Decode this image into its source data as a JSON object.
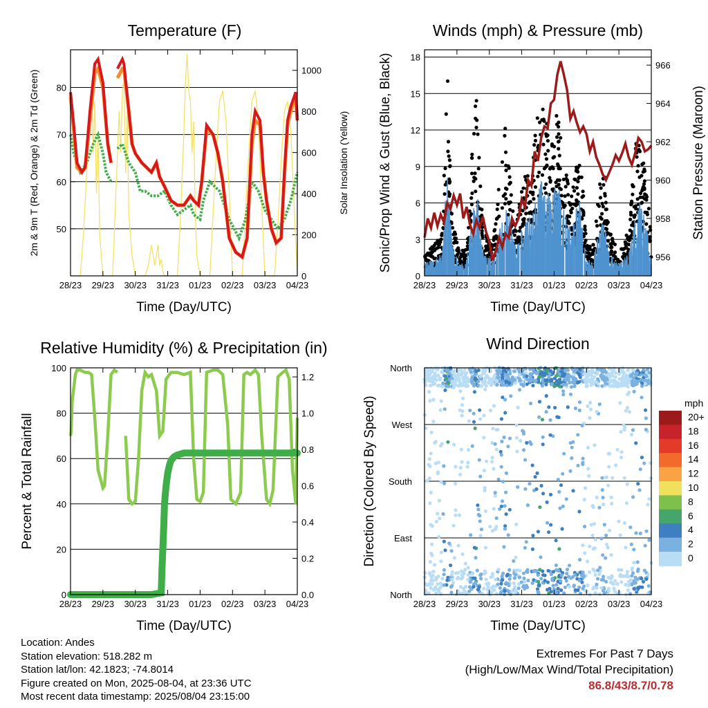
{
  "colors": {
    "temp2m": "#d7191c",
    "temp9m": "#f58b2e",
    "dewpoint": "#3fae49",
    "solar": "#f5e064",
    "gust": "#000000",
    "wind": "#4f93cf",
    "pressure": "#9b1b1b",
    "rh": "#8ccb4f",
    "precip": "#3fae49",
    "extremes": "#c0282d"
  },
  "time_ticks": [
    "28/23",
    "29/23",
    "30/23",
    "31/23",
    "01/23",
    "02/23",
    "03/23",
    "04/23"
  ],
  "chart_data": [
    {
      "id": "temperature",
      "type": "line",
      "title": "Temperature (F)",
      "xlabel": "Time (Day/UTC)",
      "ylabel": "2m & 9m T (Red, Orange) & 2m Td (Green)",
      "y2label": "Solar Insolation (Yellow)",
      "ylim": [
        40,
        88
      ],
      "y2lim": [
        0,
        1100
      ],
      "yticks": [
        50,
        60,
        70,
        80
      ],
      "y2ticks": [
        0,
        200,
        400,
        600,
        800,
        1000
      ],
      "x_days": [
        0,
        1,
        2,
        3,
        4,
        5,
        6,
        7
      ],
      "series": [
        {
          "key": "t2m",
          "x": [
            0,
            0.1,
            0.2,
            0.35,
            0.45,
            0.6,
            0.75,
            0.85,
            1.0,
            1.15,
            1.25,
            1.3,
            1.45,
            1.6,
            1.65,
            1.8,
            1.9,
            2.0,
            2.1,
            2.2,
            2.35,
            2.5,
            2.65,
            2.75,
            2.9,
            3.1,
            3.3,
            3.5,
            3.7,
            3.8,
            3.95,
            4.05,
            4.2,
            4.4,
            4.55,
            4.7,
            4.9,
            5.1,
            5.3,
            5.45,
            5.6,
            5.7,
            5.85,
            5.95,
            6.05,
            6.2,
            6.35,
            6.5,
            6.6,
            6.7,
            6.8,
            6.95,
            7.0
          ],
          "y": [
            79,
            72,
            64,
            62,
            63,
            75,
            85,
            86,
            81,
            68,
            64,
            null,
            84,
            86,
            85,
            75,
            68,
            66,
            65,
            64,
            63,
            62,
            64,
            61,
            59,
            56,
            55,
            55,
            57,
            56,
            55,
            60,
            72,
            70,
            66,
            60,
            48,
            45,
            44,
            48,
            70,
            75,
            73,
            62,
            56,
            50,
            47,
            48,
            62,
            73,
            76,
            79,
            73
          ]
        },
        {
          "key": "t9m",
          "x": [
            0,
            0.1,
            0.2,
            0.35,
            0.45,
            0.6,
            0.75,
            0.85,
            1.0,
            1.15,
            1.25,
            1.3,
            1.45,
            1.6,
            1.65,
            1.8,
            1.9,
            2.0,
            2.1,
            2.2,
            2.35,
            2.5,
            2.65,
            2.75,
            2.9,
            3.1,
            3.3,
            3.5,
            3.7,
            3.8,
            3.95,
            4.05,
            4.2,
            4.4,
            4.55,
            4.7,
            4.9,
            5.1,
            5.3,
            5.45,
            5.6,
            5.7,
            5.85,
            5.95,
            6.05,
            6.2,
            6.35,
            6.5,
            6.6,
            6.7,
            6.8,
            6.95,
            7.0
          ],
          "y": [
            78,
            71,
            63,
            62,
            63,
            73,
            83,
            84,
            80,
            68,
            64,
            null,
            82,
            84,
            84,
            75,
            68,
            66,
            65,
            64,
            63,
            62,
            64,
            61,
            59,
            56,
            55,
            55,
            57,
            56,
            55,
            60,
            71,
            70,
            66,
            60,
            48,
            45,
            44,
            48,
            68,
            73,
            72,
            62,
            56,
            50,
            47,
            48,
            61,
            72,
            75,
            78,
            73
          ]
        },
        {
          "key": "td2m",
          "x": [
            0,
            0.1,
            0.3,
            0.5,
            0.7,
            0.85,
            1.0,
            1.1,
            1.25,
            1.3,
            1.45,
            1.6,
            1.8,
            2.0,
            2.15,
            2.3,
            2.5,
            2.7,
            2.9,
            3.1,
            3.3,
            3.5,
            3.7,
            3.8,
            4.0,
            4.1,
            4.3,
            4.6,
            4.9,
            5.2,
            5.4,
            5.6,
            5.8,
            6.0,
            6.2,
            6.4,
            6.6,
            6.8,
            7.0
          ],
          "y": [
            70,
            66,
            62,
            64,
            68,
            70,
            66,
            62,
            60,
            null,
            67,
            68,
            64,
            62,
            58,
            58,
            57,
            57,
            58,
            55,
            53,
            54,
            55,
            53,
            52,
            56,
            60,
            58,
            52,
            48,
            52,
            60,
            58,
            54,
            52,
            50,
            52,
            56,
            62
          ]
        },
        {
          "key": "solar",
          "x": [
            0,
            0.3,
            0.4,
            0.5,
            0.6,
            0.65,
            0.7,
            0.75,
            0.8,
            0.85,
            0.9,
            1.0,
            1.1,
            1.3,
            1.4,
            1.5,
            1.55,
            1.6,
            1.65,
            1.7,
            1.75,
            1.8,
            1.9,
            2.0,
            2.3,
            2.4,
            2.5,
            2.6,
            2.65,
            2.7,
            2.75,
            2.8,
            2.85,
            2.9,
            3.0,
            3.3,
            3.4,
            3.5,
            3.55,
            3.6,
            3.65,
            3.7,
            3.75,
            3.8,
            3.85,
            3.9,
            4.0,
            4.3,
            4.4,
            4.5,
            4.6,
            4.7,
            4.8,
            4.9,
            5.0,
            5.3,
            5.4,
            5.5,
            5.6,
            5.7,
            5.8,
            5.9,
            6.0,
            6.3,
            6.4,
            6.5,
            6.6,
            6.7,
            6.8,
            6.9,
            7.0
          ],
          "y": [
            0,
            0,
            200,
            500,
            750,
            900,
            600,
            850,
            400,
            700,
            200,
            0,
            0,
            0,
            400,
            800,
            600,
            900,
            950,
            500,
            800,
            300,
            100,
            0,
            0,
            50,
            150,
            50,
            100,
            150,
            50,
            80,
            20,
            0,
            0,
            0,
            300,
            700,
            950,
            1080,
            900,
            850,
            600,
            750,
            300,
            100,
            0,
            0,
            300,
            600,
            850,
            900,
            750,
            400,
            0,
            0,
            300,
            600,
            850,
            900,
            750,
            350,
            0,
            0,
            250,
            550,
            800,
            850,
            700,
            350,
            0
          ]
        }
      ]
    },
    {
      "id": "winds",
      "type": "scatter",
      "title": "Winds (mph) & Pressure (mb)",
      "xlabel": "Time (Day/UTC)",
      "ylabel": "Sonic/Prop Wind & Gust (Blue, Black)",
      "y2label": "Station Pressure (Maroon)",
      "ylim": [
        0,
        18.6
      ],
      "y2lim": [
        955,
        966.8
      ],
      "yticks": [
        0,
        3,
        6,
        9,
        12,
        15,
        18
      ],
      "y2ticks": [
        956,
        958,
        960,
        962,
        964,
        966
      ],
      "gust_profile": {
        "x": [
          0,
          0.3,
          0.55,
          0.7,
          0.85,
          1.1,
          1.3,
          1.6,
          1.8,
          2.1,
          2.5,
          2.8,
          3.0,
          3.3,
          3.6,
          3.9,
          4.1,
          4.5,
          4.8,
          5.0,
          5.2,
          5.5,
          5.7,
          6.0,
          6.3,
          6.6,
          6.9,
          7.0
        ],
        "y": [
          2,
          2,
          3,
          14,
          4,
          1.5,
          2,
          13,
          3,
          2,
          10,
          3,
          6,
          8,
          12,
          9,
          11,
          5,
          9,
          2,
          2,
          8,
          3,
          1.5,
          3,
          11,
          5,
          3
        ]
      },
      "wind_profile": {
        "x": [
          0,
          0.3,
          0.55,
          0.7,
          0.85,
          1.1,
          1.3,
          1.6,
          1.8,
          2.1,
          2.5,
          2.8,
          3.0,
          3.3,
          3.6,
          3.9,
          4.1,
          4.5,
          4.8,
          5.0,
          5.2,
          5.5,
          5.7,
          6.0,
          6.3,
          6.6,
          6.9,
          7.0
        ],
        "y": [
          1,
          1,
          1.5,
          7,
          2,
          0.7,
          1,
          6,
          1.5,
          1,
          5,
          2,
          3,
          4,
          6,
          5,
          6,
          3,
          5,
          1,
          1,
          4,
          1.5,
          0.7,
          1.5,
          5,
          3,
          1.5
        ]
      },
      "series": [
        {
          "key": "pressure",
          "x": [
            0,
            0.1,
            0.2,
            0.3,
            0.4,
            0.5,
            0.6,
            0.7,
            0.8,
            0.9,
            1.0,
            1.1,
            1.2,
            1.3,
            1.4,
            1.5,
            1.6,
            1.7,
            1.8,
            1.9,
            2.0,
            2.1,
            2.2,
            2.3,
            2.4,
            2.5,
            2.6,
            2.7,
            2.8,
            2.9,
            3.0,
            3.1,
            3.2,
            3.3,
            3.4,
            3.5,
            3.6,
            3.7,
            3.8,
            3.9,
            4.0,
            4.1,
            4.2,
            4.3,
            4.4,
            4.5,
            4.6,
            4.7,
            4.8,
            4.9,
            5.0,
            5.1,
            5.2,
            5.3,
            5.4,
            5.5,
            5.6,
            5.7,
            5.8,
            5.9,
            6.0,
            6.1,
            6.2,
            6.3,
            6.4,
            6.5,
            6.6,
            6.7,
            6.8,
            6.9,
            7.0
          ],
          "y": [
            957,
            958,
            957.5,
            958.3,
            957.6,
            958.2,
            957.8,
            958.8,
            958.5,
            959.2,
            958.7,
            959.3,
            958.0,
            958.6,
            957.7,
            957.2,
            957.9,
            957.5,
            958.1,
            957.3,
            956.8,
            955.8,
            956.3,
            957.0,
            956.5,
            957.2,
            957.0,
            958.0,
            957.6,
            958.0,
            959.0,
            958.6,
            960.0,
            959.7,
            961.5,
            961.0,
            962.2,
            962.8,
            962.7,
            964.0,
            964.2,
            965.5,
            966.2,
            965.5,
            964.7,
            963.2,
            963.6,
            963.0,
            962.5,
            962.8,
            962.4,
            961.5,
            962.0,
            961.2,
            960.8,
            960.3,
            960.0,
            960.4,
            960.8,
            961.3,
            961.0,
            961.4,
            961.9,
            961.2,
            960.8,
            961.4,
            962.2,
            962.0,
            961.5,
            961.6,
            961.8
          ]
        }
      ]
    },
    {
      "id": "humidity",
      "type": "line",
      "title": "Relative Humidity (%) & Precipitation (in)",
      "xlabel": "Time (Day/UTC)",
      "ylabel": "Percent & Total Rainfall",
      "ylim": [
        0,
        100
      ],
      "y2lim": [
        0,
        1.25
      ],
      "yticks": [
        0,
        20,
        40,
        60,
        80,
        100
      ],
      "y2ticks": [
        "0.0",
        "0.2",
        "0.4",
        "0.6",
        "0.8",
        "1.0",
        "1.2"
      ],
      "series": [
        {
          "key": "rh",
          "x": [
            0,
            0.02,
            0.05,
            0.15,
            0.2,
            0.3,
            0.45,
            0.55,
            0.65,
            0.75,
            0.85,
            1.0,
            1.05,
            1.15,
            1.25,
            1.3,
            1.35,
            1.45,
            1.6,
            1.7,
            1.8,
            1.9,
            2.0,
            2.1,
            2.2,
            2.3,
            2.4,
            2.5,
            2.65,
            2.75,
            2.85,
            2.95,
            3.1,
            3.3,
            3.5,
            3.7,
            3.8,
            3.9,
            4.0,
            4.1,
            4.2,
            4.4,
            4.55,
            4.7,
            4.85,
            4.95,
            5.1,
            5.25,
            5.35,
            5.45,
            5.55,
            5.7,
            5.8,
            5.9,
            6.05,
            6.15,
            6.25,
            6.4,
            6.55,
            6.65,
            6.75,
            6.85,
            6.95,
            7.0
          ],
          "y": [
            70,
            72,
            85,
            97,
            99,
            99,
            98,
            98,
            97,
            78,
            55,
            47,
            48,
            70,
            97,
            98,
            99,
            98,
            null,
            70,
            42,
            40,
            41,
            60,
            90,
            98,
            96,
            97,
            90,
            70,
            72,
            95,
            98,
            98,
            97,
            98,
            60,
            42,
            41,
            45,
            98,
            99,
            99,
            97,
            75,
            42,
            40,
            45,
            97,
            98,
            97,
            99,
            97,
            70,
            42,
            40,
            46,
            96,
            98,
            99,
            95,
            55,
            40,
            78
          ]
        },
        {
          "key": "precip",
          "x": [
            0,
            0.5,
            1.0,
            1.5,
            2.0,
            2.5,
            2.8,
            2.82,
            2.85,
            2.88,
            2.9,
            2.95,
            3.0,
            3.05,
            3.1,
            3.2,
            3.3,
            3.5,
            4.0,
            4.5,
            5.0,
            5.5,
            6.0,
            6.5,
            7.0
          ],
          "y": [
            0,
            0,
            0,
            0,
            0,
            0,
            0.01,
            0.12,
            0.25,
            0.38,
            0.5,
            0.6,
            0.67,
            0.71,
            0.74,
            0.76,
            0.77,
            0.78,
            0.78,
            0.78,
            0.78,
            0.78,
            0.78,
            0.78,
            0.78
          ]
        }
      ]
    },
    {
      "id": "direction",
      "type": "scatter",
      "title": "Wind Direction",
      "xlabel": "Time (Day/UTC)",
      "ylabel": "Direction (Colored By Speed)",
      "ylim": [
        0,
        360
      ],
      "ylabels": [
        "North",
        "East",
        "South",
        "West",
        "North"
      ],
      "legend": {
        "unit": "mph",
        "labels": [
          "20+",
          "18",
          "16",
          "14",
          "12",
          "10",
          "8",
          "6",
          "4",
          "2",
          "0"
        ],
        "colors": [
          "#9b1b1b",
          "#c6242a",
          "#e43a2a",
          "#f26a2c",
          "#f9a345",
          "#f0e05c",
          "#7fbf4c",
          "#45a56a",
          "#3d7fc0",
          "#7ab1e0",
          "#b9ddf5"
        ]
      }
    }
  ],
  "info": {
    "location": "Location: Andes",
    "elevation": "Station elevation: 518.282 m",
    "latlon": "Station lat/lon: 42.1823; -74.8014",
    "created": "Figure created on Mon, 2025-08-04, at 23:36 UTC",
    "timestamp": "Most recent data timestamp: 2025/08/04 23:15:00"
  },
  "extremes": {
    "heading": "Extremes For Past 7 Days",
    "subheading": "(High/Low/Max Wind/Total Precipitation)",
    "values": "86.8/43/8.7/0.78"
  }
}
